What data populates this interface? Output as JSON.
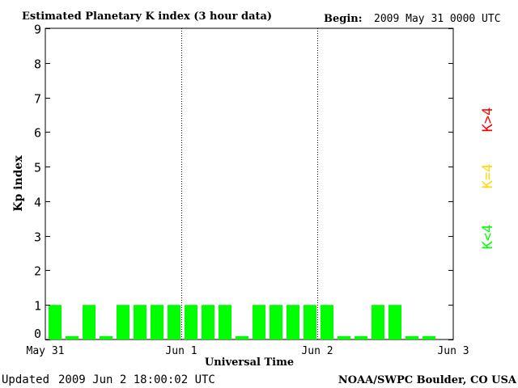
{
  "header": {
    "title": "Estimated Planetary K index (3 hour data)",
    "begin_label": "Begin:",
    "begin_value": "2009 May 31 0000 UTC"
  },
  "footer": {
    "updated_label": "Updated",
    "updated_value": "2009 Jun  2 18:00:02 UTC",
    "source": "NOAA/SWPC Boulder, CO USA"
  },
  "legend": [
    {
      "label": "K>4",
      "color": "#ff0000"
    },
    {
      "label": "K=4",
      "color": "#ffd700"
    },
    {
      "label": "K<4",
      "color": "#00ff00"
    }
  ],
  "chart_data": {
    "type": "bar",
    "title": "Estimated Planetary K index (3 hour data)",
    "xlabel": "Universal Time",
    "ylabel": "Kp index",
    "ylim": [
      0,
      9
    ],
    "yticks": [
      0,
      1,
      2,
      3,
      4,
      5,
      6,
      7,
      8,
      9
    ],
    "xlim_days": [
      0,
      3
    ],
    "xticks": [
      {
        "day": 0,
        "label": "May 31"
      },
      {
        "day": 1,
        "label": "Jun 1"
      },
      {
        "day": 2,
        "label": "Jun 2"
      },
      {
        "day": 3,
        "label": "Jun 3"
      }
    ],
    "day_dividers": [
      1,
      2
    ],
    "bar_color": "#00ff00",
    "values": [
      1,
      0.1,
      1,
      0.1,
      1,
      1,
      1,
      1,
      1,
      1,
      1,
      0.1,
      1,
      1,
      1,
      1,
      1,
      0.1,
      0.1,
      1,
      1,
      0.1,
      0.1
    ]
  }
}
